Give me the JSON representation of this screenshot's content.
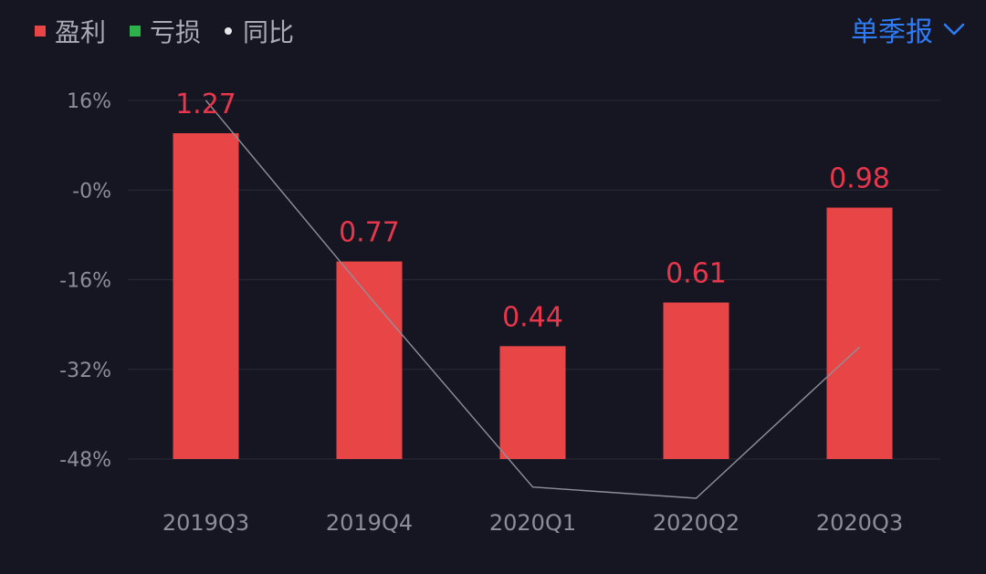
{
  "legend": {
    "items": [
      {
        "label": "盈利",
        "color": "#e84646",
        "marker": "square"
      },
      {
        "label": "亏损",
        "color": "#2db14b",
        "marker": "square"
      },
      {
        "label": "同比",
        "color": "#e6e6ea",
        "marker": "dot"
      }
    ]
  },
  "period_select": {
    "label": "单季报",
    "icon": "chevron-down-icon",
    "color": "#2f7cf6"
  },
  "colors": {
    "profit": "#e84646",
    "loss": "#2db14b",
    "line": "#8f909a",
    "grid": "#2a2b36",
    "data_label": "#e8364c"
  },
  "chart_data": {
    "type": "bar",
    "categories": [
      "2019Q3",
      "2019Q4",
      "2020Q1",
      "2020Q2",
      "2020Q3"
    ],
    "series": [
      {
        "name": "盈利",
        "type": "bar",
        "values": [
          1.27,
          0.77,
          0.44,
          0.61,
          0.98
        ],
        "data_labels": [
          "1.27",
          "0.77",
          "0.44",
          "0.61",
          "0.98"
        ]
      },
      {
        "name": "同比",
        "type": "line",
        "axis": "left",
        "unit": "%",
        "values": [
          16,
          -19,
          -53,
          -55,
          -28
        ]
      }
    ],
    "bar_axis": {
      "min": 0,
      "max": 1.4
    },
    "y_axis": {
      "ticks": [
        16,
        0,
        -16,
        -32,
        -48
      ],
      "tick_labels": [
        "16%",
        "-0%",
        "-16%",
        "-32%",
        "-48%"
      ],
      "range": [
        -48,
        16
      ]
    },
    "grid": true,
    "legend_position": "top-left"
  }
}
